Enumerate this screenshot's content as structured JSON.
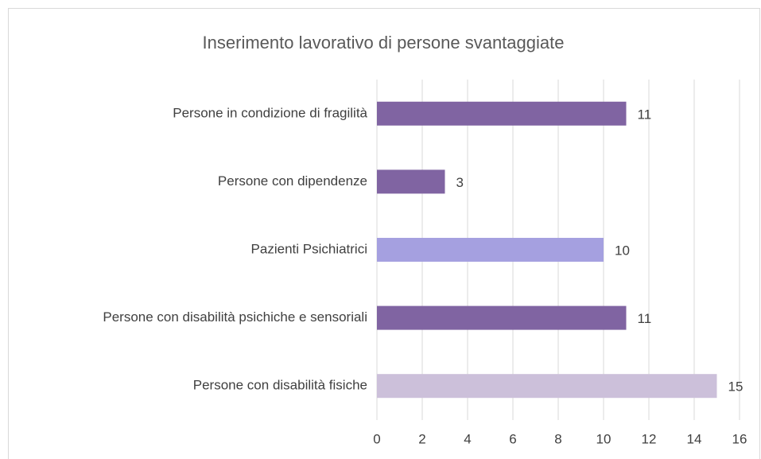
{
  "chart_data": {
    "type": "hbar",
    "title": "Inserimento lavorativo di persone svantaggiate",
    "categories": [
      "Persone in condizione di fragilità",
      "Persone con dipendenze",
      "Pazienti Psichiatrici",
      "Persone con disabilità psichiche e sensoriali",
      "Persone con disabilità fisiche"
    ],
    "values": [
      11,
      3,
      10,
      11,
      15
    ],
    "colors": [
      "#8064a2",
      "#8064a2",
      "#a5a0e0",
      "#8064a2",
      "#ccc0da"
    ],
    "xlim": [
      0,
      16
    ],
    "xticks": [
      0,
      2,
      4,
      6,
      8,
      10,
      12,
      14,
      16
    ],
    "grid": true
  }
}
